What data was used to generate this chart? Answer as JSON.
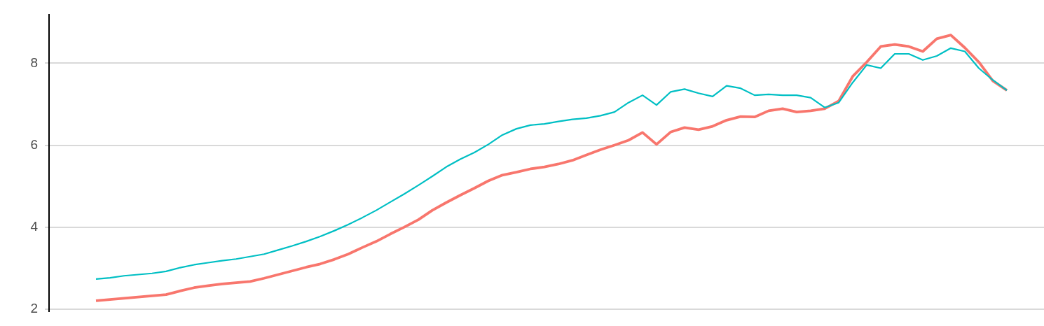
{
  "chart_data": {
    "type": "line",
    "categories": [
      null,
      null,
      null,
      null,
      null,
      null,
      null,
      null,
      null,
      null,
      null,
      null,
      null,
      null,
      null,
      null,
      null,
      null,
      null,
      null,
      null,
      null,
      null,
      null,
      null,
      null,
      null,
      null,
      null,
      null,
      null,
      null,
      null,
      null,
      null,
      null,
      null,
      null,
      null,
      null,
      null,
      null,
      null,
      null,
      null,
      null,
      null,
      null,
      null,
      null,
      null,
      null,
      null,
      null,
      null,
      null,
      null,
      null,
      null,
      null,
      null,
      null,
      null,
      null,
      null,
      null
    ],
    "series": [
      {
        "color": "#f8766d",
        "values": [
          2.2,
          2.23,
          2.26,
          2.29,
          2.32,
          2.35,
          2.44,
          2.52,
          2.57,
          2.61,
          2.64,
          2.67,
          2.75,
          2.84,
          2.93,
          3.02,
          3.1,
          3.21,
          3.34,
          3.5,
          3.65,
          3.83,
          4.0,
          4.18,
          4.41,
          4.6,
          4.78,
          4.95,
          5.13,
          5.27,
          5.34,
          5.42,
          5.47,
          5.54,
          5.63,
          5.76,
          5.89,
          6.0,
          6.12,
          6.31,
          6.02,
          6.32,
          6.43,
          6.38,
          6.46,
          6.61,
          6.7,
          6.69,
          6.84,
          6.89,
          6.81,
          6.84,
          6.89,
          7.08,
          7.68,
          8.03,
          8.41,
          8.46,
          8.41,
          8.29,
          8.6,
          8.69,
          8.38,
          8.03,
          7.57,
          7.34
        ]
      },
      {
        "color": "#00bfc4",
        "values": [
          2.73,
          2.76,
          2.81,
          2.84,
          2.87,
          2.92,
          3.01,
          3.08,
          3.13,
          3.18,
          3.22,
          3.28,
          3.34,
          3.44,
          3.54,
          3.65,
          3.77,
          3.91,
          4.06,
          4.23,
          4.41,
          4.61,
          4.81,
          5.02,
          5.24,
          5.47,
          5.66,
          5.82,
          6.02,
          6.25,
          6.4,
          6.49,
          6.52,
          6.58,
          6.63,
          6.66,
          6.72,
          6.81,
          7.04,
          7.22,
          6.98,
          7.3,
          7.37,
          7.27,
          7.19,
          7.45,
          7.39,
          7.22,
          7.24,
          7.22,
          7.22,
          7.16,
          6.92,
          7.04,
          7.53,
          7.96,
          7.88,
          8.23,
          8.23,
          8.08,
          8.18,
          8.37,
          8.29,
          7.88,
          7.59,
          7.34
        ]
      }
    ],
    "ylim": [
      1.95,
      9.18
    ],
    "yticks": [
      2,
      4,
      6,
      8
    ],
    "grid": "y",
    "tick_labels": "y",
    "legend": false,
    "marker": "none",
    "line_style": "solid"
  }
}
